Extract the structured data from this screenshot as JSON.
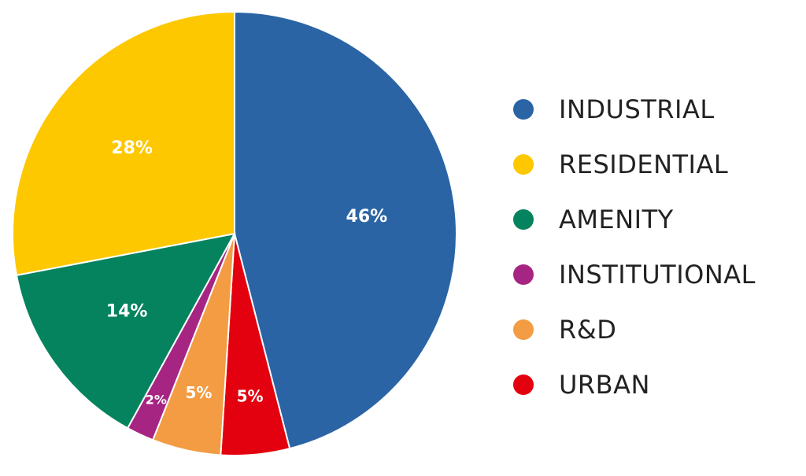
{
  "chart_data": {
    "type": "pie",
    "start": "12 o'clock, clockwise",
    "slices": [
      {
        "name": "INDUSTRIAL",
        "value": 46,
        "label": "46%",
        "color": "#2a64a4"
      },
      {
        "name": "URBAN",
        "value": 5,
        "label": "5%",
        "color": "#e3000f"
      },
      {
        "name": "R&D",
        "value": 5,
        "label": "5%",
        "color": "#f39c43"
      },
      {
        "name": "INSTITUTIONAL",
        "value": 2,
        "label": "2%",
        "color": "#a62582"
      },
      {
        "name": "AMENITY",
        "value": 14,
        "label": "14%",
        "color": "#04835e"
      },
      {
        "name": "RESIDENTIAL",
        "value": 28,
        "label": "28%",
        "color": "#fdc800"
      }
    ],
    "legend": {
      "placement": "right",
      "items": [
        {
          "label": "INDUSTRIAL",
          "color": "#2a64a4"
        },
        {
          "label": "RESIDENTIAL",
          "color": "#fdc800"
        },
        {
          "label": "AMENITY",
          "color": "#04835e"
        },
        {
          "label": "INSTITUTIONAL",
          "color": "#a62582"
        },
        {
          "label": "R&D",
          "color": "#f39c43"
        },
        {
          "label": "URBAN",
          "color": "#e3000f"
        }
      ]
    }
  }
}
